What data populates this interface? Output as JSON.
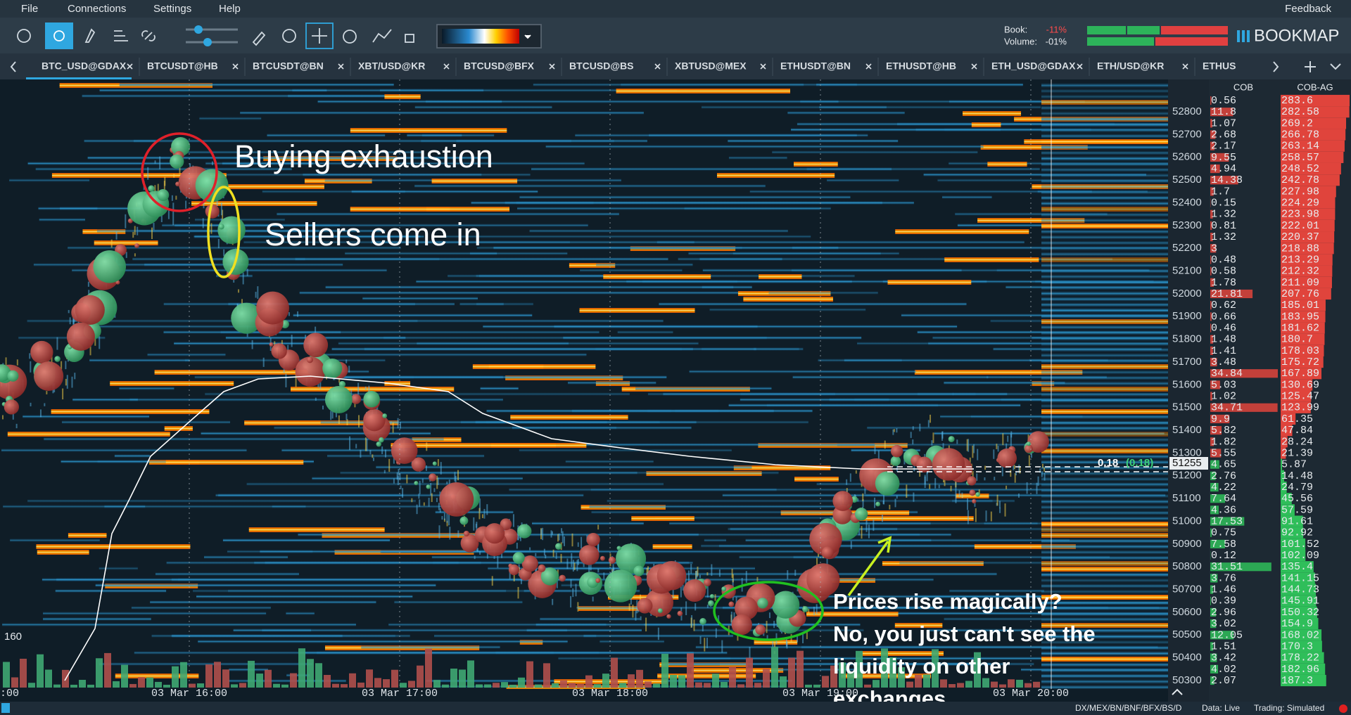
{
  "menu": {
    "items": [
      "File",
      "Connections",
      "Settings",
      "Help"
    ],
    "feedback": "Feedback"
  },
  "toolbar": {
    "book_label": "Book:",
    "book_value": "-11%",
    "volume_label": "Volume:",
    "volume_value": "-01%",
    "brand": "BOOKMAP"
  },
  "tabs": [
    "BTC_USD@GDAX",
    "BTCUSDT@HB",
    "BTCUSDT@BN",
    "XBT/USD@KR",
    "BTCUSD@BFX",
    "BTCUSD@BS",
    "XBTUSD@MEX",
    "ETHUSDT@BN",
    "ETHUSDT@HB",
    "ETH_USD@GDAX",
    "ETH/USD@KR",
    "ETHUS"
  ],
  "heatmap": {
    "price_ticks": [
      52800,
      52700,
      52600,
      52500,
      52400,
      52300,
      52200,
      52100,
      52000,
      51900,
      51800,
      51700,
      51600,
      51500,
      51400,
      51300,
      51200,
      51100,
      51000,
      50900,
      50800,
      50700,
      50600,
      50500,
      50400,
      50300
    ],
    "time_labels": [
      ":00",
      "03 Mar 16:00",
      "03 Mar 17:00",
      "03 Mar 18:00",
      "03 Mar 19:00",
      "03 Mar 20:00"
    ],
    "volume_scale": 160,
    "last_price": 51255,
    "trade_size": 0.18,
    "trade_size_aggregated": "(0.18)"
  },
  "order_book": {
    "headers": [
      "COB",
      "COB-AG"
    ],
    "cob": [
      0.56,
      11.8,
      1.07,
      2.68,
      2.17,
      9.55,
      4.94,
      14.38,
      1.7,
      0.15,
      1.32,
      0.81,
      1.32,
      3,
      0.48,
      0.58,
      1.78,
      21.81,
      0.62,
      0.66,
      0.46,
      1.48,
      1.41,
      3.48,
      34.84,
      5.03,
      1.02,
      34.71,
      9.9,
      5.82,
      1.82,
      5.55,
      4.65,
      2.76,
      4.22,
      7.64,
      4.36,
      17.53,
      0.75,
      7.58,
      0.12,
      31.51,
      3.76,
      1.46,
      0.39,
      2.96,
      3.02,
      12.05,
      1.51,
      3.42,
      4.02,
      2.07
    ],
    "cob_ag": [
      283.6,
      282.58,
      269.2,
      266.78,
      263.14,
      258.57,
      248.52,
      242.78,
      227.98,
      224.29,
      223.98,
      222.01,
      220.37,
      218.88,
      213.29,
      212.32,
      211.09,
      207.76,
      185.01,
      183.95,
      181.62,
      180.7,
      178.03,
      175.72,
      167.89,
      130.69,
      125.47,
      123.99,
      61.35,
      47.84,
      28.24,
      21.39,
      5.87,
      14.48,
      24.79,
      45.56,
      57.59,
      91.61,
      92.92,
      101.52,
      102.09,
      135.4,
      141.15,
      144.73,
      145.91,
      150.32,
      154.9,
      168.02,
      170.3,
      178.22,
      182.96,
      187.3
    ]
  },
  "annotations": {
    "buying_exhaustion": "Buying exhaustion",
    "sellers": "Sellers come in",
    "explanation": [
      "Prices rise magically?",
      "No, you just can't see the",
      "liquidity on other",
      "exchanges"
    ]
  },
  "status_bar": {
    "instruments": "DX/MEX/BN/BNF/BFX/BS/D",
    "data": "Data: Live",
    "trading": "Trading: Simulated"
  }
}
